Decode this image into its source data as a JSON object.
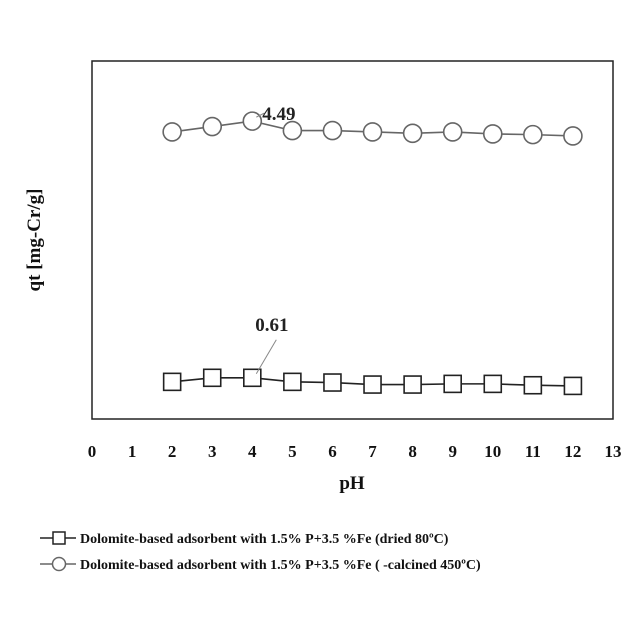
{
  "chart_data": {
    "type": "line",
    "title": "",
    "xlabel": "pH",
    "ylabel": "qt [mg-Cr/g]",
    "xlim": [
      0,
      13
    ],
    "ylim": [
      0,
      5.3
    ],
    "x_ticks": [
      0,
      1,
      2,
      3,
      4,
      5,
      6,
      7,
      8,
      9,
      10,
      11,
      12,
      13
    ],
    "grid": false,
    "legend_position": "bottom",
    "x": [
      2,
      3,
      4,
      5,
      6,
      7,
      8,
      9,
      10,
      11,
      12
    ],
    "series": [
      {
        "name": "Dolomite-based adsorbent with 1.5% P+3.5 %Fe (dried 80ºC)",
        "marker": "square",
        "color": "#222222",
        "values": [
          0.55,
          0.61,
          0.61,
          0.55,
          0.54,
          0.51,
          0.51,
          0.52,
          0.52,
          0.5,
          0.49
        ]
      },
      {
        "name": "Dolomite-based adsorbent with 1.5% P+3.5 %Fe ( -calcined 450ºC)",
        "marker": "circle",
        "color": "#666666",
        "values": [
          4.25,
          4.33,
          4.41,
          4.27,
          4.27,
          4.25,
          4.23,
          4.25,
          4.22,
          4.21,
          4.19
        ]
      }
    ],
    "annotations": [
      {
        "text": "4.49",
        "series": 1,
        "x": 4
      },
      {
        "text": "0.61",
        "series": 0,
        "x": 4
      }
    ]
  }
}
